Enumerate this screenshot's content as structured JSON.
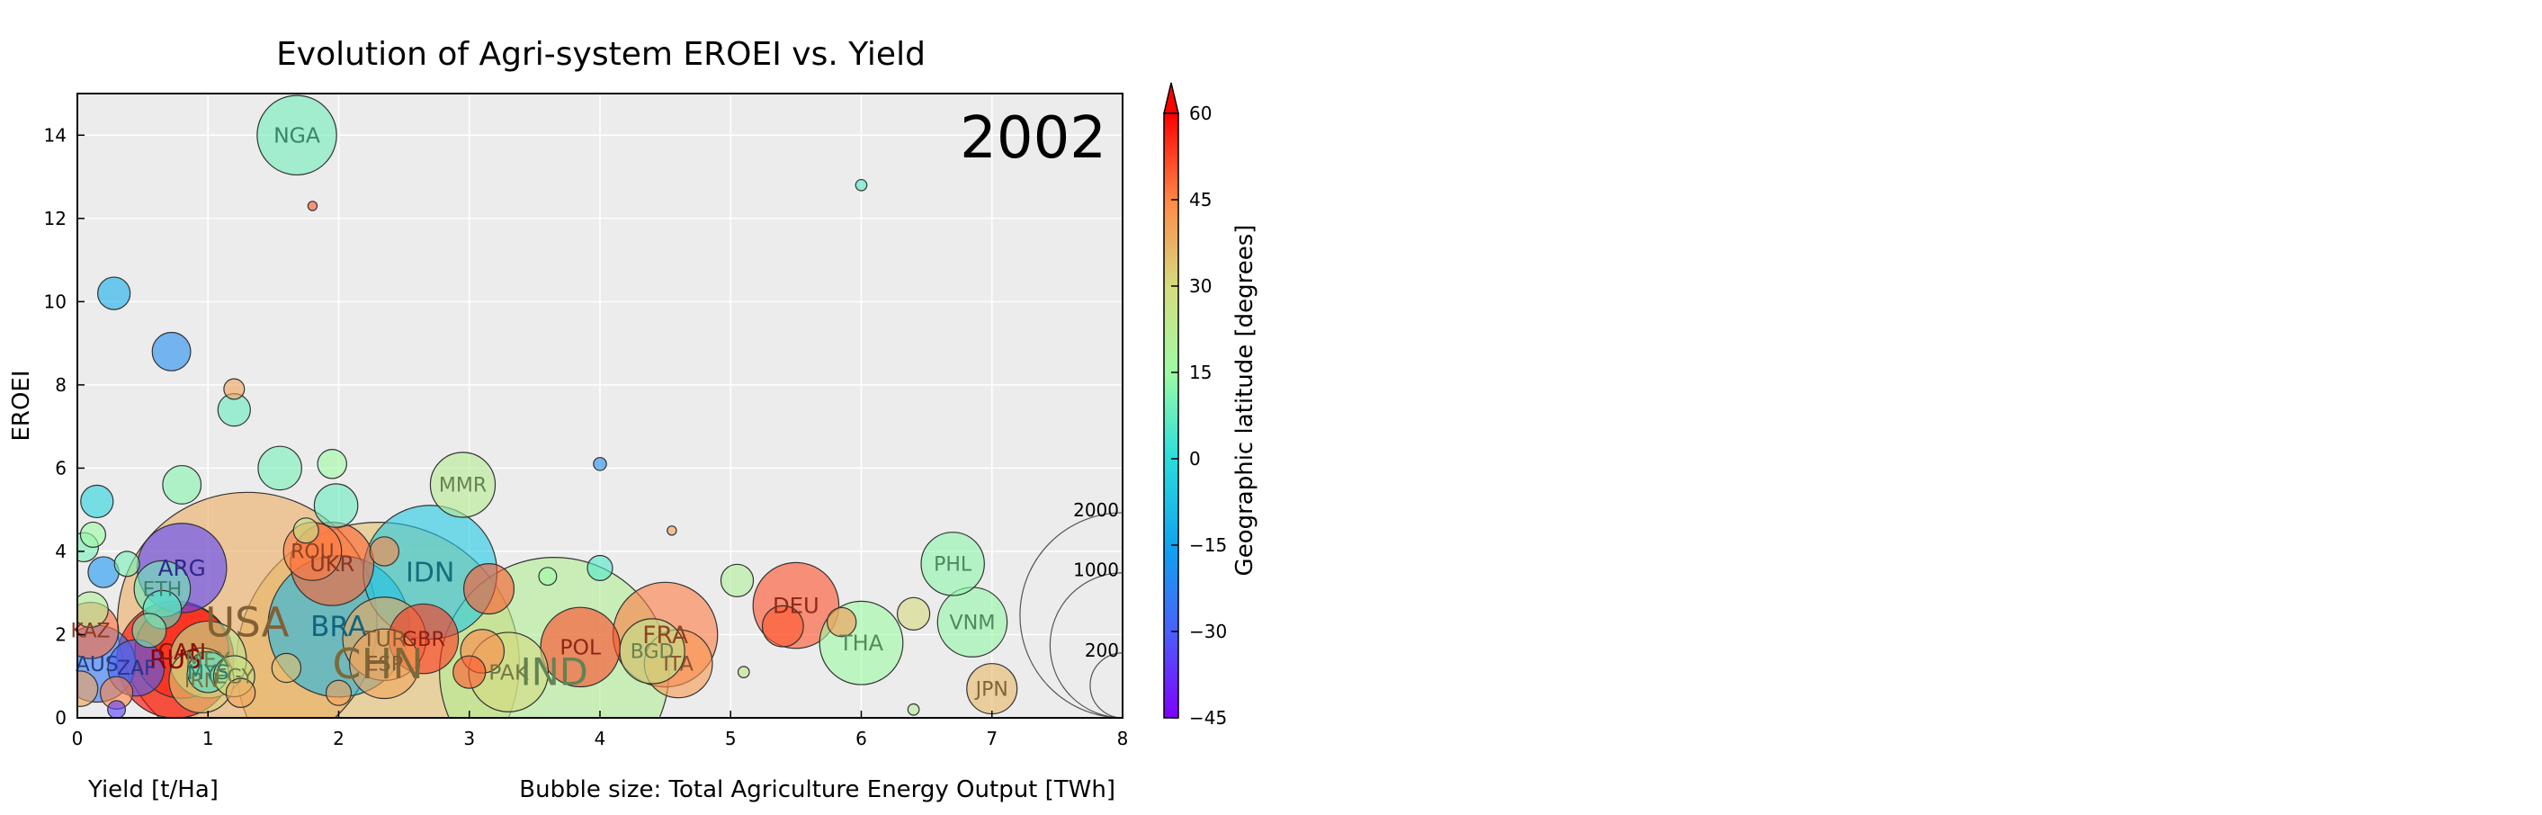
{
  "chart_data": {
    "type": "scatter",
    "title": "Evolution of Agri-system EROEI vs. Yield",
    "year": "2002",
    "xlabel": "Yield [t/Ha]",
    "ylabel": "EROEI",
    "size_label": "Bubble size: Total Agriculture Energy Output [TWh]",
    "xlim": [
      0,
      8
    ],
    "ylim": [
      0,
      15
    ],
    "xticks": [
      0,
      1,
      2,
      3,
      4,
      5,
      6,
      7,
      8
    ],
    "yticks": [
      0,
      2,
      4,
      6,
      8,
      10,
      12,
      14
    ],
    "grid": true,
    "colorbar": {
      "label": "Geographic latitude [degrees]",
      "range": [
        -45,
        60
      ],
      "ticks": [
        60,
        45,
        30,
        15,
        0,
        -15,
        -30,
        -45
      ],
      "colormap": "rainbow"
    },
    "size_legend": {
      "values": [
        2000,
        1000,
        200
      ],
      "labels": [
        "2000",
        "1000",
        "200"
      ]
    },
    "points": [
      {
        "label": "CHN",
        "x": 2.3,
        "y": 1.3,
        "size": 3800,
        "lat": 35
      },
      {
        "label": "USA",
        "x": 1.3,
        "y": 2.3,
        "size": 3200,
        "lat": 38
      },
      {
        "label": "IND",
        "x": 3.65,
        "y": 1.1,
        "size": 2500,
        "lat": 21
      },
      {
        "label": "BRA",
        "x": 2.0,
        "y": 2.2,
        "size": 950,
        "lat": -10
      },
      {
        "label": "IDN",
        "x": 2.7,
        "y": 3.5,
        "size": 850,
        "lat": -5
      },
      {
        "label": "RUS",
        "x": 0.75,
        "y": 1.4,
        "size": 650,
        "lat": 60
      },
      {
        "label": "FRA",
        "x": 4.5,
        "y": 2.0,
        "size": 520,
        "lat": 46
      },
      {
        "label": "CAN",
        "x": 0.8,
        "y": 1.6,
        "size": 420,
        "lat": 56
      },
      {
        "label": "ARG",
        "x": 0.8,
        "y": 3.6,
        "size": 380,
        "lat": -34
      },
      {
        "label": "DEU",
        "x": 5.5,
        "y": 2.7,
        "size": 350,
        "lat": 51
      },
      {
        "label": "UKR",
        "x": 1.95,
        "y": 3.7,
        "size": 330,
        "lat": 49
      },
      {
        "label": "TUR",
        "x": 2.35,
        "y": 1.9,
        "size": 330,
        "lat": 39
      },
      {
        "label": "THA",
        "x": 6.0,
        "y": 1.8,
        "size": 330,
        "lat": 15
      },
      {
        "label": "NGA",
        "x": 1.68,
        "y": 14.0,
        "size": 300,
        "lat": 9
      },
      {
        "label": "POL",
        "x": 3.85,
        "y": 1.7,
        "size": 300,
        "lat": 52
      },
      {
        "label": "PAK",
        "x": 3.3,
        "y": 1.1,
        "size": 300,
        "lat": 30
      },
      {
        "label": "AUS",
        "x": 0.15,
        "y": 1.3,
        "size": 280,
        "lat": -25
      },
      {
        "label": "MEX",
        "x": 1.0,
        "y": 1.4,
        "size": 280,
        "lat": 23
      },
      {
        "label": "GBR",
        "x": 2.65,
        "y": 1.9,
        "size": 230,
        "lat": 54
      },
      {
        "label": "ESP",
        "x": 2.35,
        "y": 1.3,
        "size": 230,
        "lat": 40
      },
      {
        "label": "VNM",
        "x": 6.85,
        "y": 2.3,
        "size": 230,
        "lat": 14
      },
      {
        "label": "BGD",
        "x": 4.4,
        "y": 1.6,
        "size": 200,
        "lat": 24
      },
      {
        "label": "MMR",
        "x": 2.95,
        "y": 5.6,
        "size": 200,
        "lat": 22
      },
      {
        "label": "PHL",
        "x": 6.7,
        "y": 3.7,
        "size": 190,
        "lat": 13
      },
      {
        "label": "ITA",
        "x": 4.6,
        "y": 1.3,
        "size": 220,
        "lat": 42
      },
      {
        "label": "IRN",
        "x": 0.95,
        "y": 0.9,
        "size": 200,
        "lat": 32
      },
      {
        "label": "ROU",
        "x": 1.8,
        "y": 4.0,
        "size": 160,
        "lat": 46
      },
      {
        "label": "ETH",
        "x": 0.65,
        "y": 3.1,
        "size": 150,
        "lat": 9
      },
      {
        "label": "KAZ",
        "x": 0.1,
        "y": 2.1,
        "size": 150,
        "lat": 48
      },
      {
        "label": "ZAF",
        "x": 0.45,
        "y": 1.2,
        "size": 150,
        "lat": -30
      },
      {
        "label": "JPN",
        "x": 7.0,
        "y": 0.7,
        "size": 120,
        "lat": 36
      },
      {
        "label": "MYS",
        "x": 1.0,
        "y": 1.1,
        "size": 80,
        "lat": 4
      },
      {
        "label": "EGY",
        "x": 1.2,
        "y": 1.0,
        "size": 80,
        "lat": 27
      },
      {
        "label": "",
        "x": 0.28,
        "y": 10.2,
        "size": 50,
        "lat": -12
      },
      {
        "label": "",
        "x": 0.72,
        "y": 8.8,
        "size": 70,
        "lat": -20
      },
      {
        "label": "",
        "x": 1.2,
        "y": 7.4,
        "size": 50,
        "lat": 8
      },
      {
        "label": "",
        "x": 1.2,
        "y": 7.9,
        "size": 20,
        "lat": 40
      },
      {
        "label": "",
        "x": 1.55,
        "y": 6.0,
        "size": 90,
        "lat": 10
      },
      {
        "label": "",
        "x": 0.8,
        "y": 5.6,
        "size": 70,
        "lat": 12
      },
      {
        "label": "",
        "x": 1.98,
        "y": 5.1,
        "size": 90,
        "lat": 8
      },
      {
        "label": "",
        "x": 0.15,
        "y": 5.2,
        "size": 50,
        "lat": -2
      },
      {
        "label": "",
        "x": 0.2,
        "y": 3.5,
        "size": 45,
        "lat": -18
      },
      {
        "label": "",
        "x": 3.15,
        "y": 3.1,
        "size": 120,
        "lat": 50
      },
      {
        "label": "",
        "x": 5.05,
        "y": 3.3,
        "size": 50,
        "lat": 20
      },
      {
        "label": "",
        "x": 4.0,
        "y": 3.6,
        "size": 30,
        "lat": 5
      },
      {
        "label": "",
        "x": 1.95,
        "y": 6.1,
        "size": 40,
        "lat": 15
      },
      {
        "label": "",
        "x": 0.55,
        "y": 2.1,
        "size": 55,
        "lat": 10
      },
      {
        "label": "",
        "x": 0.65,
        "y": 2.6,
        "size": 70,
        "lat": 5
      },
      {
        "label": "",
        "x": 2.35,
        "y": 4.0,
        "size": 40,
        "lat": 45
      },
      {
        "label": "",
        "x": 5.4,
        "y": 2.2,
        "size": 80,
        "lat": 50
      },
      {
        "label": "",
        "x": 5.85,
        "y": 2.3,
        "size": 40,
        "lat": 42
      },
      {
        "label": "",
        "x": 6.4,
        "y": 2.5,
        "size": 50,
        "lat": 30
      },
      {
        "label": "",
        "x": 3.1,
        "y": 1.6,
        "size": 90,
        "lat": 45
      },
      {
        "label": "",
        "x": 3.0,
        "y": 1.1,
        "size": 50,
        "lat": 50
      },
      {
        "label": "",
        "x": 2.0,
        "y": 0.6,
        "size": 30,
        "lat": 40
      },
      {
        "label": "",
        "x": 1.6,
        "y": 1.2,
        "size": 40,
        "lat": 35
      },
      {
        "label": "",
        "x": 1.25,
        "y": 0.6,
        "size": 40,
        "lat": 40
      },
      {
        "label": "",
        "x": 0.3,
        "y": 0.6,
        "size": 50,
        "lat": 45
      },
      {
        "label": "",
        "x": 0.1,
        "y": 2.6,
        "size": 60,
        "lat": 20
      },
      {
        "label": "",
        "x": 0.12,
        "y": 4.4,
        "size": 30,
        "lat": 15
      },
      {
        "label": "",
        "x": 0.38,
        "y": 3.7,
        "size": 30,
        "lat": 10
      },
      {
        "label": "",
        "x": 4.0,
        "y": 6.1,
        "size": 8,
        "lat": -20
      },
      {
        "label": "",
        "x": 1.8,
        "y": 12.3,
        "size": 4,
        "lat": 50
      },
      {
        "label": "",
        "x": 6.0,
        "y": 12.8,
        "size": 6,
        "lat": 5
      },
      {
        "label": "",
        "x": 4.55,
        "y": 4.5,
        "size": 4,
        "lat": 40
      },
      {
        "label": "",
        "x": 3.6,
        "y": 3.4,
        "size": 15,
        "lat": 15
      },
      {
        "label": "",
        "x": 5.1,
        "y": 1.1,
        "size": 6,
        "lat": 25
      },
      {
        "label": "",
        "x": 6.4,
        "y": 0.2,
        "size": 6,
        "lat": 20
      },
      {
        "label": "",
        "x": 0.3,
        "y": 0.2,
        "size": 15,
        "lat": -35
      },
      {
        "label": "",
        "x": 1.75,
        "y": 4.5,
        "size": 30,
        "lat": 25
      },
      {
        "label": "",
        "x": 0.05,
        "y": 4.1,
        "size": 40,
        "lat": 10
      },
      {
        "label": "",
        "x": 0.02,
        "y": 0.7,
        "size": 60,
        "lat": 40
      }
    ]
  }
}
